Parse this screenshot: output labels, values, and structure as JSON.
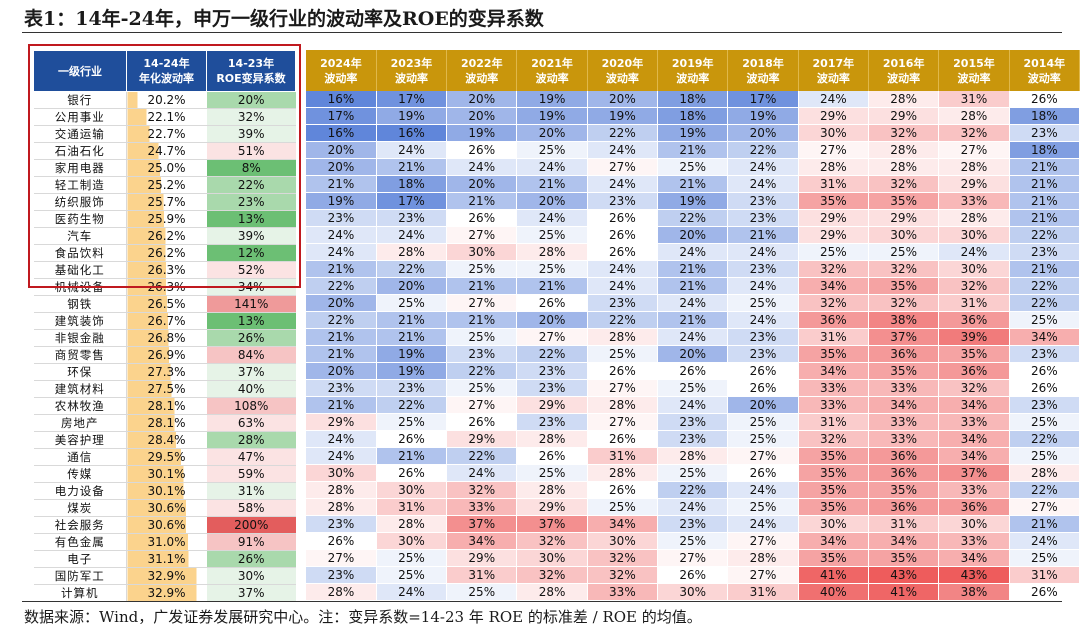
{
  "title": "表1：14年-24年，申万一级行业的波动率及ROE的变异系数",
  "footnote": "数据来源：Wind，广发证券发展研究中心。注：变异系数=14-23 年 ROE 的标准差 / ROE 的均值。",
  "headers": {
    "industry": "一级行业",
    "vol_line1": "14-24年",
    "vol_line2": "年化波动率",
    "cv_line1": "14-23年",
    "cv_line2": "ROE变异系数"
  },
  "year_headers": [
    {
      "year": "2024年",
      "label": "波动率"
    },
    {
      "year": "2023年",
      "label": "波动率"
    },
    {
      "year": "2022年",
      "label": "波动率"
    },
    {
      "year": "2021年",
      "label": "波动率"
    },
    {
      "year": "2020年",
      "label": "波动率"
    },
    {
      "year": "2019年",
      "label": "波动率"
    },
    {
      "year": "2018年",
      "label": "波动率"
    },
    {
      "year": "2017年",
      "label": "波动率"
    },
    {
      "year": "2016年",
      "label": "波动率"
    },
    {
      "year": "2015年",
      "label": "波动率"
    },
    {
      "year": "2014年",
      "label": "波动率"
    }
  ],
  "rows": [
    {
      "industry": "银行",
      "vol": "20.2%",
      "cv": "20%",
      "years": [
        "16%",
        "17%",
        "20%",
        "19%",
        "20%",
        "18%",
        "17%",
        "24%",
        "28%",
        "31%",
        "26%"
      ]
    },
    {
      "industry": "公用事业",
      "vol": "22.1%",
      "cv": "32%",
      "years": [
        "17%",
        "19%",
        "20%",
        "19%",
        "19%",
        "18%",
        "19%",
        "29%",
        "29%",
        "28%",
        "18%"
      ]
    },
    {
      "industry": "交通运输",
      "vol": "22.7%",
      "cv": "39%",
      "years": [
        "16%",
        "16%",
        "19%",
        "20%",
        "22%",
        "19%",
        "20%",
        "30%",
        "32%",
        "32%",
        "23%"
      ]
    },
    {
      "industry": "石油石化",
      "vol": "24.7%",
      "cv": "51%",
      "years": [
        "20%",
        "24%",
        "26%",
        "25%",
        "24%",
        "21%",
        "22%",
        "27%",
        "28%",
        "27%",
        "18%"
      ]
    },
    {
      "industry": "家用电器",
      "vol": "25.0%",
      "cv": "8%",
      "years": [
        "20%",
        "21%",
        "24%",
        "24%",
        "27%",
        "25%",
        "24%",
        "28%",
        "28%",
        "28%",
        "21%"
      ]
    },
    {
      "industry": "轻工制造",
      "vol": "25.2%",
      "cv": "22%",
      "years": [
        "21%",
        "18%",
        "20%",
        "21%",
        "24%",
        "21%",
        "24%",
        "31%",
        "32%",
        "29%",
        "21%"
      ]
    },
    {
      "industry": "纺织服饰",
      "vol": "25.7%",
      "cv": "23%",
      "years": [
        "19%",
        "17%",
        "21%",
        "20%",
        "23%",
        "19%",
        "23%",
        "35%",
        "35%",
        "33%",
        "21%"
      ]
    },
    {
      "industry": "医药生物",
      "vol": "25.9%",
      "cv": "13%",
      "years": [
        "23%",
        "23%",
        "26%",
        "24%",
        "26%",
        "22%",
        "23%",
        "29%",
        "29%",
        "28%",
        "21%"
      ]
    },
    {
      "industry": "汽车",
      "vol": "26.2%",
      "cv": "39%",
      "years": [
        "24%",
        "24%",
        "27%",
        "25%",
        "26%",
        "20%",
        "21%",
        "29%",
        "30%",
        "30%",
        "22%"
      ]
    },
    {
      "industry": "食品饮料",
      "vol": "26.2%",
      "cv": "12%",
      "years": [
        "24%",
        "28%",
        "30%",
        "28%",
        "26%",
        "24%",
        "24%",
        "25%",
        "25%",
        "24%",
        "23%"
      ]
    },
    {
      "industry": "基础化工",
      "vol": "26.3%",
      "cv": "52%",
      "years": [
        "21%",
        "22%",
        "25%",
        "25%",
        "24%",
        "21%",
        "23%",
        "32%",
        "32%",
        "30%",
        "21%"
      ]
    },
    {
      "industry": "机械设备",
      "vol": "26.3%",
      "cv": "34%",
      "years": [
        "22%",
        "20%",
        "21%",
        "21%",
        "24%",
        "21%",
        "24%",
        "34%",
        "35%",
        "32%",
        "22%"
      ]
    },
    {
      "industry": "钢铁",
      "vol": "26.5%",
      "cv": "141%",
      "years": [
        "20%",
        "25%",
        "27%",
        "26%",
        "23%",
        "24%",
        "25%",
        "32%",
        "32%",
        "31%",
        "22%"
      ]
    },
    {
      "industry": "建筑装饰",
      "vol": "26.7%",
      "cv": "13%",
      "years": [
        "22%",
        "21%",
        "21%",
        "20%",
        "22%",
        "21%",
        "24%",
        "36%",
        "38%",
        "36%",
        "25%"
      ]
    },
    {
      "industry": "非银金融",
      "vol": "26.8%",
      "cv": "26%",
      "years": [
        "21%",
        "21%",
        "25%",
        "27%",
        "28%",
        "24%",
        "23%",
        "31%",
        "37%",
        "39%",
        "34%"
      ]
    },
    {
      "industry": "商贸零售",
      "vol": "26.9%",
      "cv": "84%",
      "years": [
        "21%",
        "19%",
        "23%",
        "22%",
        "25%",
        "20%",
        "23%",
        "35%",
        "36%",
        "35%",
        "23%"
      ]
    },
    {
      "industry": "环保",
      "vol": "27.3%",
      "cv": "37%",
      "years": [
        "20%",
        "19%",
        "22%",
        "23%",
        "26%",
        "26%",
        "26%",
        "34%",
        "35%",
        "36%",
        "26%"
      ]
    },
    {
      "industry": "建筑材料",
      "vol": "27.5%",
      "cv": "40%",
      "years": [
        "23%",
        "23%",
        "25%",
        "23%",
        "27%",
        "25%",
        "26%",
        "33%",
        "33%",
        "32%",
        "26%"
      ]
    },
    {
      "industry": "农林牧渔",
      "vol": "28.1%",
      "cv": "108%",
      "years": [
        "21%",
        "22%",
        "27%",
        "29%",
        "28%",
        "24%",
        "20%",
        "33%",
        "34%",
        "34%",
        "23%"
      ]
    },
    {
      "industry": "房地产",
      "vol": "28.1%",
      "cv": "63%",
      "years": [
        "29%",
        "25%",
        "26%",
        "23%",
        "27%",
        "23%",
        "25%",
        "31%",
        "33%",
        "33%",
        "25%"
      ]
    },
    {
      "industry": "美容护理",
      "vol": "28.4%",
      "cv": "28%",
      "years": [
        "24%",
        "26%",
        "29%",
        "28%",
        "26%",
        "23%",
        "25%",
        "32%",
        "33%",
        "34%",
        "22%"
      ]
    },
    {
      "industry": "通信",
      "vol": "29.5%",
      "cv": "47%",
      "years": [
        "24%",
        "21%",
        "22%",
        "26%",
        "31%",
        "28%",
        "27%",
        "35%",
        "36%",
        "34%",
        "25%"
      ]
    },
    {
      "industry": "传媒",
      "vol": "30.1%",
      "cv": "59%",
      "years": [
        "30%",
        "26%",
        "24%",
        "25%",
        "28%",
        "25%",
        "26%",
        "35%",
        "36%",
        "37%",
        "28%"
      ]
    },
    {
      "industry": "电力设备",
      "vol": "30.1%",
      "cv": "31%",
      "years": [
        "28%",
        "30%",
        "32%",
        "28%",
        "26%",
        "22%",
        "24%",
        "35%",
        "35%",
        "33%",
        "22%"
      ]
    },
    {
      "industry": "煤炭",
      "vol": "30.6%",
      "cv": "58%",
      "years": [
        "28%",
        "31%",
        "33%",
        "29%",
        "25%",
        "24%",
        "25%",
        "35%",
        "36%",
        "36%",
        "27%"
      ]
    },
    {
      "industry": "社会服务",
      "vol": "30.6%",
      "cv": "200%",
      "years": [
        "23%",
        "28%",
        "37%",
        "37%",
        "34%",
        "23%",
        "24%",
        "30%",
        "31%",
        "30%",
        "21%"
      ]
    },
    {
      "industry": "有色金属",
      "vol": "31.0%",
      "cv": "91%",
      "years": [
        "26%",
        "30%",
        "34%",
        "32%",
        "30%",
        "25%",
        "27%",
        "34%",
        "34%",
        "33%",
        "24%"
      ]
    },
    {
      "industry": "电子",
      "vol": "31.1%",
      "cv": "26%",
      "years": [
        "27%",
        "25%",
        "29%",
        "30%",
        "32%",
        "27%",
        "28%",
        "35%",
        "35%",
        "34%",
        "25%"
      ]
    },
    {
      "industry": "国防军工",
      "vol": "32.9%",
      "cv": "30%",
      "years": [
        "23%",
        "25%",
        "31%",
        "32%",
        "32%",
        "26%",
        "27%",
        "41%",
        "43%",
        "43%",
        "31%"
      ]
    },
    {
      "industry": "计算机",
      "vol": "32.9%",
      "cv": "37%",
      "years": [
        "28%",
        "24%",
        "25%",
        "28%",
        "33%",
        "30%",
        "31%",
        "40%",
        "41%",
        "38%",
        "26%"
      ]
    }
  ]
}
